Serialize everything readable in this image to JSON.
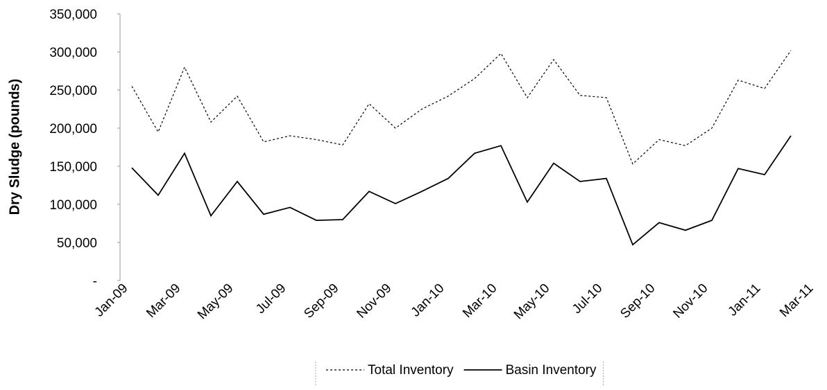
{
  "chart_data": {
    "type": "line",
    "y_axis_label": "Dry Sludge (pounds)",
    "categories": [
      "Jan-09",
      null,
      "Mar-09",
      null,
      "May-09",
      null,
      "Jul-09",
      null,
      "Sep-09",
      null,
      "Nov-09",
      null,
      "Jan-10",
      null,
      "Mar-10",
      null,
      "May-10",
      null,
      "Jul-10",
      null,
      "Sep-10",
      null,
      "Nov-10",
      null,
      "Jan-11",
      null,
      "Mar-11"
    ],
    "series": [
      {
        "name": "Total Inventory",
        "color": "#000000",
        "dash": true,
        "values": [
          255000,
          195000,
          280000,
          208000,
          242000,
          182000,
          190000,
          185000,
          178000,
          232000,
          200000,
          225000,
          242000,
          265000,
          298000,
          240000,
          290000,
          243000,
          240000,
          153000,
          185000,
          177000,
          200000,
          263000,
          252000,
          302000,
          null
        ]
      },
      {
        "name": "Basin Inventory",
        "color": "#000000",
        "dash": false,
        "values": [
          148000,
          112000,
          167000,
          85000,
          130000,
          87000,
          96000,
          79000,
          80000,
          117000,
          101000,
          117000,
          134000,
          167000,
          177000,
          103000,
          154000,
          130000,
          134000,
          47000,
          76000,
          66000,
          79000,
          147000,
          139000,
          190000,
          null
        ]
      }
    ],
    "ylim": [
      0,
      350000
    ],
    "yticks": [
      {
        "value": 0,
        "label": "-"
      },
      {
        "value": 50000,
        "label": "50,000"
      },
      {
        "value": 100000,
        "label": "100,000"
      },
      {
        "value": 150000,
        "label": "150,000"
      },
      {
        "value": 200000,
        "label": "200,000"
      },
      {
        "value": 250000,
        "label": "250,000"
      },
      {
        "value": 300000,
        "label": "300,000"
      },
      {
        "value": 350000,
        "label": "350,000"
      }
    ],
    "grid": false,
    "legend": "bottom"
  }
}
